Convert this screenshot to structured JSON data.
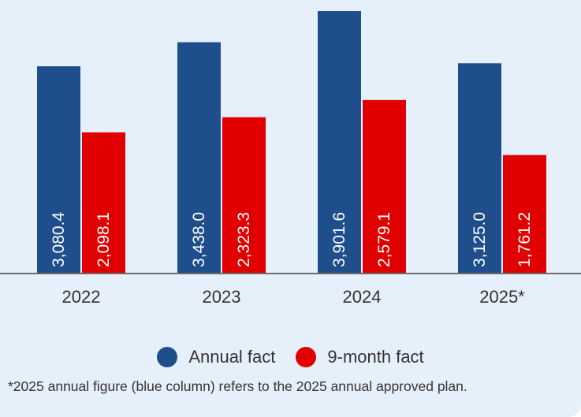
{
  "chart_data": {
    "type": "bar",
    "categories": [
      "2022",
      "2023",
      "2024",
      "2025*"
    ],
    "series": [
      {
        "name": "Annual fact",
        "values": [
          3080.4,
          3438.0,
          3901.6,
          3125.0
        ],
        "labels": [
          "3,080.4",
          "3,438.0",
          "3,901.6",
          "3,125.0"
        ],
        "color": "#1f4e8c"
      },
      {
        "name": "9-month fact",
        "values": [
          2098.1,
          2323.3,
          2579.1,
          1761.2
        ],
        "labels": [
          "2,098.1",
          "2,323.3",
          "2,579.1",
          "1,761.2"
        ],
        "color": "#e00000"
      }
    ],
    "ylim": [
      0,
      4000
    ],
    "grid": false,
    "legend": "bottom",
    "axis_color": "#6b6b6b"
  },
  "legend": {
    "annual_label": "Annual fact",
    "nine_month_label": "9-month fact"
  },
  "footnote": "*2025 annual figure (blue column) refers to the 2025 annual approved plan."
}
